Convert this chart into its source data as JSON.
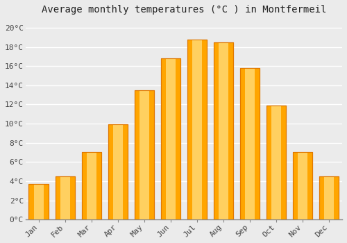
{
  "title": "Average monthly temperatures (°C ) in Montfermeil",
  "months": [
    "Jan",
    "Feb",
    "Mar",
    "Apr",
    "May",
    "Jun",
    "Jul",
    "Aug",
    "Sep",
    "Oct",
    "Nov",
    "Dec"
  ],
  "values": [
    3.7,
    4.5,
    7.0,
    9.9,
    13.5,
    16.8,
    18.8,
    18.5,
    15.8,
    11.9,
    7.0,
    4.5
  ],
  "bar_color_main": "#FFA500",
  "bar_color_edge": "#E07800",
  "bar_color_light": "#FFD060",
  "ylim": [
    0,
    21
  ],
  "yticks": [
    0,
    2,
    4,
    6,
    8,
    10,
    12,
    14,
    16,
    18,
    20
  ],
  "ytick_labels": [
    "0°C",
    "2°C",
    "4°C",
    "6°C",
    "8°C",
    "10°C",
    "12°C",
    "14°C",
    "16°C",
    "18°C",
    "20°C"
  ],
  "background_color": "#ebebeb",
  "plot_bg_color": "#ebebeb",
  "grid_color": "#ffffff",
  "title_fontsize": 10,
  "tick_fontsize": 8,
  "font_family": "monospace",
  "bar_width": 0.75
}
